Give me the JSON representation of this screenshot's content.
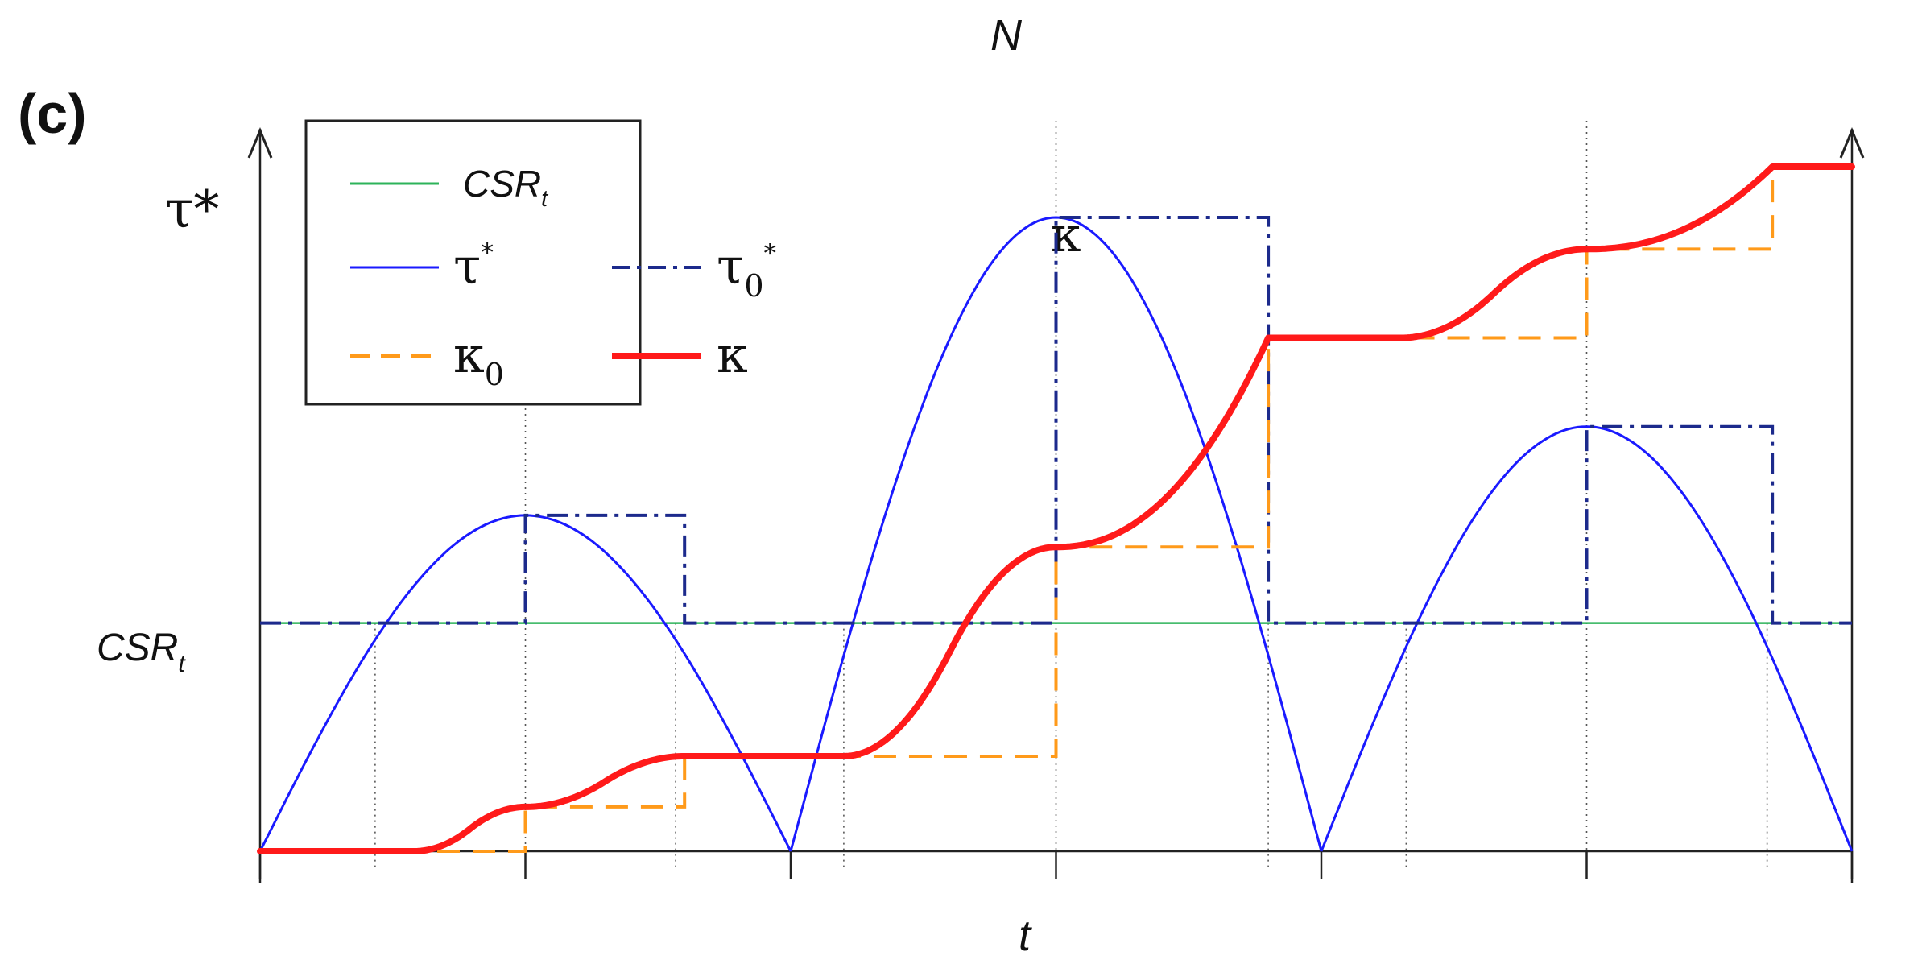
{
  "chart_data": {
    "type": "line",
    "panel_label": "(c)",
    "xlabel": "t",
    "ylabel_left": "τ*",
    "ylabel_right": "N",
    "right_axis_label": "κ",
    "ytick_label": "CSR",
    "ytick_label_sub": "t",
    "legend": {
      "position": "top-left",
      "entries": [
        {
          "key": "csr",
          "text": "CSR",
          "sub": "t",
          "sup": "",
          "color": "#2db35a",
          "style": "solid"
        },
        {
          "key": "tau",
          "text": "τ",
          "sub": "",
          "sup": "*",
          "color": "#1a1aff",
          "style": "solid"
        },
        {
          "key": "tau0",
          "text": "τ",
          "sub": "0",
          "sup": "*",
          "color": "#1c2a8c",
          "style": "dash-dot"
        },
        {
          "key": "kappa0",
          "text": "κ",
          "sub": "0",
          "sup": "",
          "color": "#ff9a1a",
          "style": "dashed"
        },
        {
          "key": "kappa",
          "text": "κ",
          "sub": "",
          "sup": "",
          "color": "#ff1a1a",
          "style": "solid-thick"
        }
      ]
    },
    "x_range": [
      0,
      6
    ],
    "y_range": [
      0,
      1
    ],
    "csr_level": 0.36,
    "tau_peaks": [
      0.53,
      1.0,
      0.67
    ],
    "tau_cycles": [
      [
        0,
        2
      ],
      [
        2,
        4
      ],
      [
        4,
        6
      ]
    ],
    "tau0_steps": [
      {
        "x0": 1.0,
        "x1": 1.6,
        "y": 0.53
      },
      {
        "x0": 3.0,
        "x1": 3.8,
        "y": 1.0
      },
      {
        "x0": 5.0,
        "x1": 5.7,
        "y": 0.67
      }
    ],
    "kappa_levels": [
      0.0,
      0.07,
      0.15,
      0.48,
      0.81,
      0.95,
      1.08
    ],
    "kappa_step_times": [
      1.0,
      1.6,
      3.0,
      3.8,
      5.0,
      5.7
    ],
    "kappa_smooth_segments": [
      {
        "x0": 0.58,
        "x1": 1.6,
        "y0": 0.0,
        "y1": 0.15
      },
      {
        "x0": 2.2,
        "x1": 3.8,
        "y0": 0.15,
        "y1": 0.81
      },
      {
        "x0": 4.3,
        "x1": 5.7,
        "y0": 0.81,
        "y1": 1.08
      }
    ],
    "grid": false
  }
}
